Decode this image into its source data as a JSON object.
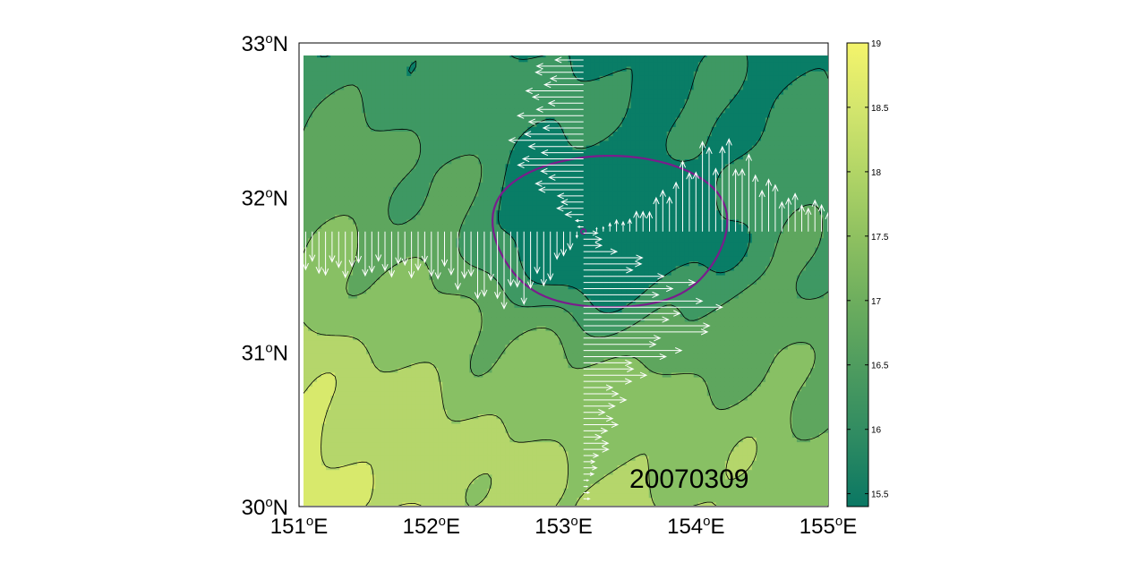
{
  "chart_data": {
    "type": "heatmap",
    "title": "",
    "xlabel": "",
    "ylabel": "",
    "annotation": "20070309",
    "xlim": [
      151,
      155
    ],
    "ylim": [
      30,
      33
    ],
    "x_ticks": [
      {
        "value": 151,
        "num": "151",
        "deg": "o",
        "hemi": "E"
      },
      {
        "value": 152,
        "num": "152",
        "deg": "o",
        "hemi": "E"
      },
      {
        "value": 153,
        "num": "153",
        "deg": "o",
        "hemi": "E"
      },
      {
        "value": 154,
        "num": "154",
        "deg": "o",
        "hemi": "E"
      },
      {
        "value": 155,
        "num": "155",
        "deg": "o",
        "hemi": "E"
      }
    ],
    "y_ticks": [
      {
        "value": 30,
        "num": "30",
        "deg": "o",
        "hemi": "N"
      },
      {
        "value": 31,
        "num": "31",
        "deg": "o",
        "hemi": "N"
      },
      {
        "value": 32,
        "num": "32",
        "deg": "o",
        "hemi": "N"
      },
      {
        "value": 33,
        "num": "33",
        "deg": "o",
        "hemi": "N"
      }
    ],
    "colorbar": {
      "range": [
        15.4,
        19
      ],
      "ticks": [
        "15.5",
        "16",
        "16.5",
        "17",
        "17.5",
        "18",
        "18.5",
        "19"
      ],
      "tick_values": [
        15.5,
        16,
        16.5,
        17,
        17.5,
        18,
        18.5,
        19
      ],
      "colormap": [
        "#0a7763",
        "#2d8a62",
        "#4b9a5f",
        "#6aac5e",
        "#8cbf60",
        "#b0d466",
        "#d3e56d",
        "#f4f46b"
      ]
    },
    "contour_levels": [
      15.9,
      16.4,
      16.9,
      17.4,
      17.9
    ],
    "fill_colors": [
      "#097d66",
      "#3e9863",
      "#5ea65e",
      "#88c064",
      "#b5d66b",
      "#d8e96c"
    ],
    "eddy": {
      "center": [
        153.15,
        31.78
      ],
      "ring_color": "#7a1c8c"
    },
    "velocity_sections": {
      "zonal": {
        "lat": 31.78,
        "lon_range": [
          151.0,
          155.0
        ],
        "description": "meridional velocity along latitude line"
      },
      "meridional": {
        "lon": 153.15,
        "lat_range": [
          30.05,
          32.9
        ],
        "description": "zonal velocity along longitude line"
      }
    },
    "grid": false,
    "legend": "none"
  }
}
